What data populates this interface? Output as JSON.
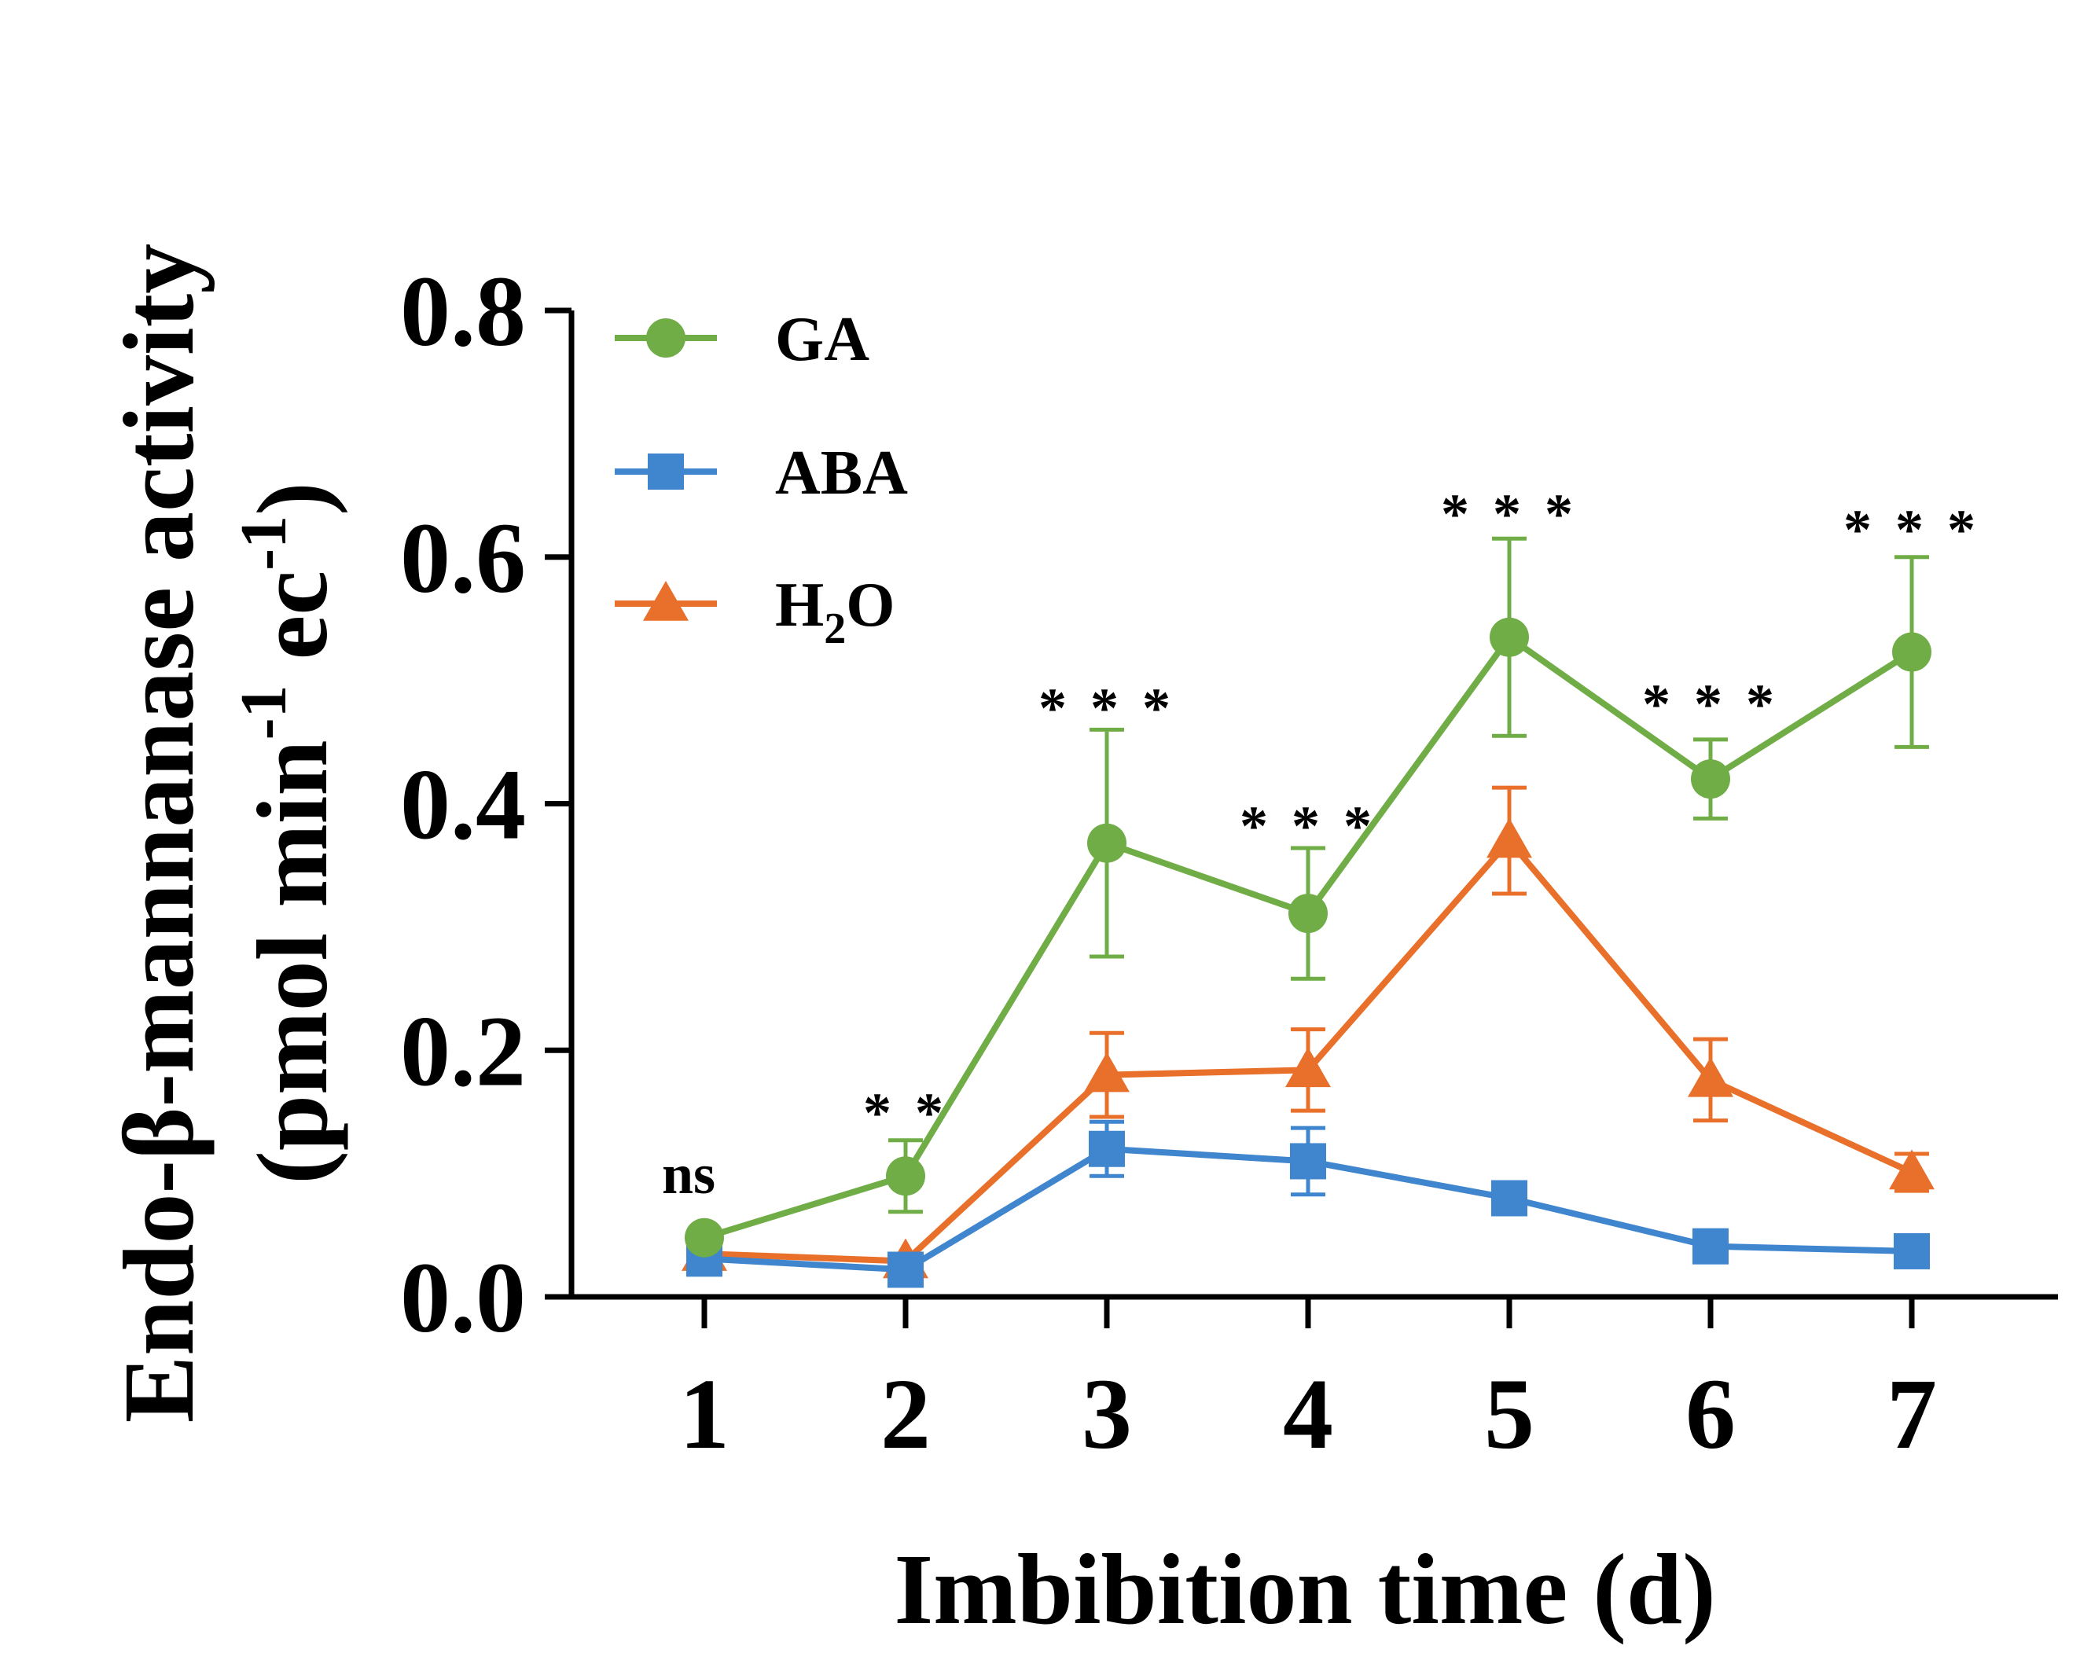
{
  "chart_data": {
    "type": "line",
    "xlabel": "Imbibition time (d)",
    "ylabel_line1": "Endo-β-mannanase activity",
    "ylabel_line2_parts": [
      "(pmol min",
      "-1",
      " ec",
      "-1",
      ")"
    ],
    "x": [
      1,
      2,
      3,
      4,
      5,
      6,
      7
    ],
    "x_tick_labels": [
      "1",
      "2",
      "3",
      "4",
      "5",
      "6",
      "7"
    ],
    "ylim": [
      0.0,
      0.8
    ],
    "y_ticks": [
      0.0,
      0.2,
      0.4,
      0.6,
      0.8
    ],
    "y_tick_labels": [
      "0.0",
      "0.2",
      "0.4",
      "0.6",
      "0.8"
    ],
    "legend_position": "top-left",
    "grid": false,
    "series": [
      {
        "name": "GA",
        "legend_text": "GA",
        "marker": "circle",
        "color": "#70AD47",
        "values": [
          0.048,
          0.098,
          0.368,
          0.311,
          0.535,
          0.42,
          0.523
        ],
        "errors": [
          0.0,
          0.029,
          0.092,
          0.053,
          0.08,
          0.032,
          0.077
        ]
      },
      {
        "name": "ABA",
        "legend_text": "ABA",
        "marker": "square",
        "color": "#3F86CF",
        "values": [
          0.031,
          0.022,
          0.12,
          0.11,
          0.08,
          0.041,
          0.037
        ],
        "errors": [
          0.0,
          0.0,
          0.022,
          0.027,
          0.0,
          0.0,
          0.0
        ]
      },
      {
        "name": "H2O",
        "legend_text_main": "H",
        "legend_text_sub": "2",
        "legend_text_tail": "O",
        "marker": "triangle",
        "color": "#E8702A",
        "values": [
          0.035,
          0.029,
          0.18,
          0.184,
          0.37,
          0.176,
          0.101
        ],
        "errors": [
          0.0,
          0.0,
          0.034,
          0.033,
          0.043,
          0.033,
          0.015
        ]
      }
    ],
    "annotations": [
      "ns",
      "* *",
      "* * *",
      "* * *",
      "* * *",
      "* * *",
      "* * *"
    ]
  }
}
